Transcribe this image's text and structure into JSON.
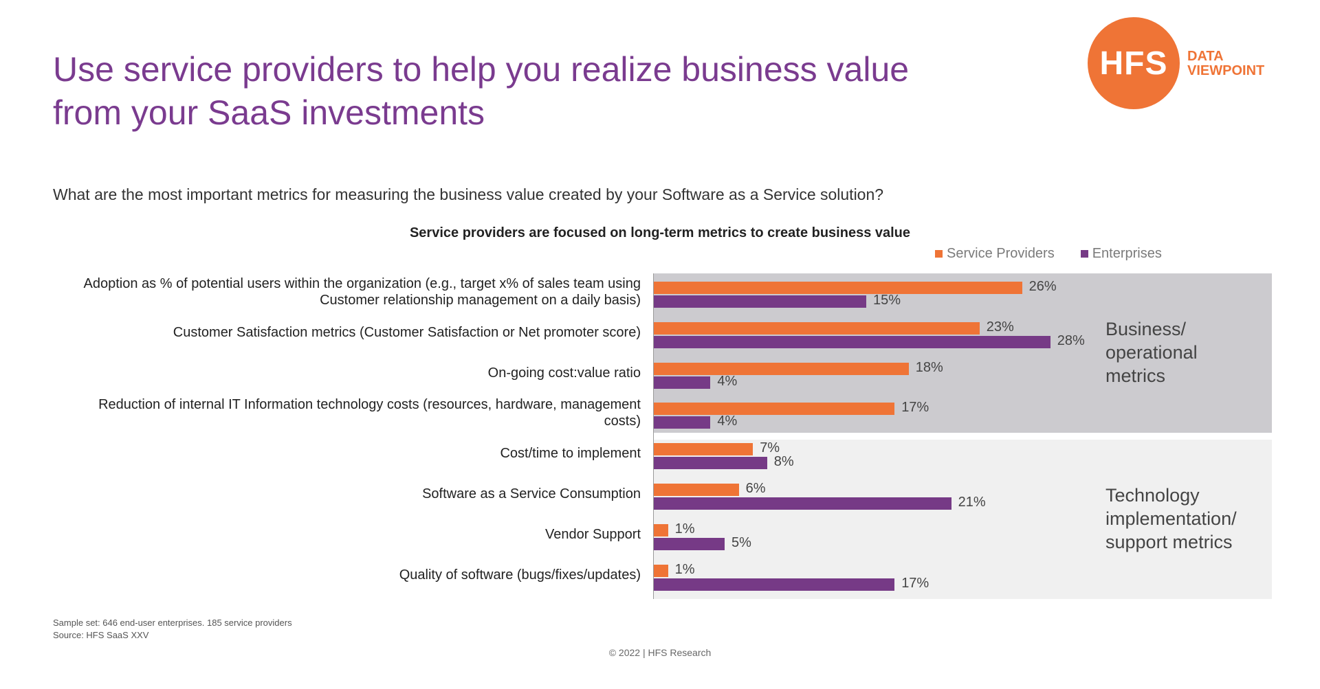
{
  "header": {
    "title_lines": [
      "Use service providers to help you realize business value",
      "from your SaaS investments"
    ]
  },
  "logo": {
    "main": "HFS",
    "sub_lines": [
      "DATA",
      "VIEWPOINT"
    ],
    "color": "#ef7436"
  },
  "question": "What are the most important metrics for measuring the business value created by your Software as a Service solution?",
  "groups": [
    {
      "label_lines": [
        "Business/",
        "operational",
        "metrics"
      ]
    },
    {
      "label_lines": [
        "Technology",
        "implementation/",
        "support metrics"
      ]
    }
  ],
  "chart_data": {
    "type": "bar",
    "orientation": "horizontal",
    "title": "Service providers are focused on long-term metrics to create business value",
    "categories": [
      [
        "Adoption as % of potential users within the organization (e.g., target x% of sales team using",
        "Customer relationship management on a daily basis)"
      ],
      [
        "Customer Satisfaction metrics (Customer Satisfaction or Net promoter score)"
      ],
      [
        "On-going cost:value ratio"
      ],
      [
        "Reduction of internal IT Information technology costs (resources, hardware, management",
        "costs)"
      ],
      [
        "Cost/time to implement"
      ],
      [
        "Software as a Service Consumption"
      ],
      [
        "Vendor Support"
      ],
      [
        "Quality of software (bugs/fixes/updates)"
      ]
    ],
    "series": [
      {
        "name": "Service Providers",
        "color": "#ef7436",
        "values": [
          26,
          23,
          18,
          17,
          7,
          6,
          1,
          1
        ],
        "labels": [
          "26%",
          "23%",
          "18%",
          "17%",
          "7%",
          "6%",
          "1%",
          "1%"
        ]
      },
      {
        "name": "Enterprises",
        "color": "#763a86",
        "values": [
          15,
          28,
          4,
          4,
          8,
          21,
          5,
          17
        ],
        "labels": [
          "15%",
          "28%",
          "4%",
          "4%",
          "8%",
          "21%",
          "5%",
          "17%"
        ]
      }
    ],
    "unit": "%",
    "legend_position": "top-right",
    "grid": false
  },
  "footnote": {
    "lines": [
      "Sample set: 646 end-user enterprises. 185 service providers",
      "Source: HFS SaaS XXV"
    ]
  },
  "copyright": "© 2022 | HFS Research"
}
